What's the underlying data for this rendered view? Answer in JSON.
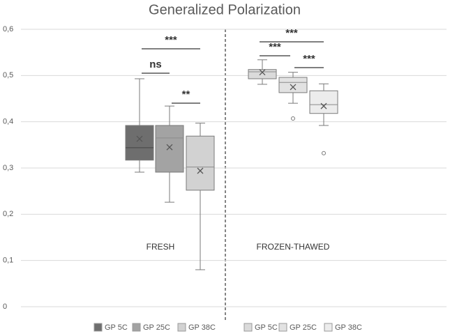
{
  "chart_data": {
    "type": "box",
    "title": "Generalized Polarization",
    "groups": [
      "FRESH",
      "FROZEN-THAWED"
    ],
    "ylim": [
      0,
      0.6
    ],
    "yticks": [
      0,
      {
        "value": 0.1,
        "label": "0,1"
      },
      {
        "value": 0.2,
        "label": "0,2"
      },
      {
        "value": 0.3,
        "label": "0,3"
      },
      {
        "value": 0.4,
        "label": "0,4"
      },
      {
        "value": 0.5,
        "label": "0,5"
      },
      {
        "value": 0.6,
        "label": "0,6"
      }
    ],
    "grid": true,
    "series": [
      {
        "name": "GP 5C",
        "color": "#6e6e6e",
        "min": 0.291,
        "q1": 0.317,
        "median": 0.344,
        "q3": 0.392,
        "max": 0.493,
        "mean": 0.363
      },
      {
        "name": "GP 25C",
        "color": "#a3a3a3",
        "min": 0.226,
        "q1": 0.291,
        "median": 0.365,
        "q3": 0.392,
        "max": 0.434,
        "mean": 0.345
      },
      {
        "name": "GP 38C",
        "color": "#d2d2d2",
        "min": 0.08,
        "q1": 0.252,
        "median": 0.302,
        "q3": 0.369,
        "max": 0.397,
        "mean": 0.294
      },
      {
        "name": "GP 5C",
        "color": "#dadada",
        "min": 0.481,
        "q1": 0.493,
        "median": 0.508,
        "q3": 0.513,
        "max": 0.534,
        "mean": 0.507
      },
      {
        "name": "GP 25C",
        "color": "#e2e2e2",
        "min": 0.44,
        "q1": 0.463,
        "median": 0.485,
        "q3": 0.496,
        "max": 0.507,
        "mean": 0.475,
        "outliers": [
          0.407
        ]
      },
      {
        "name": "GP 38C",
        "color": "#ececec",
        "min": 0.392,
        "q1": 0.418,
        "median": 0.437,
        "q3": 0.467,
        "max": 0.482,
        "mean": 0.434,
        "outliers": [
          0.332
        ]
      }
    ],
    "annotations": [
      "***",
      "ns",
      "**",
      "***",
      "***",
      "***"
    ]
  }
}
